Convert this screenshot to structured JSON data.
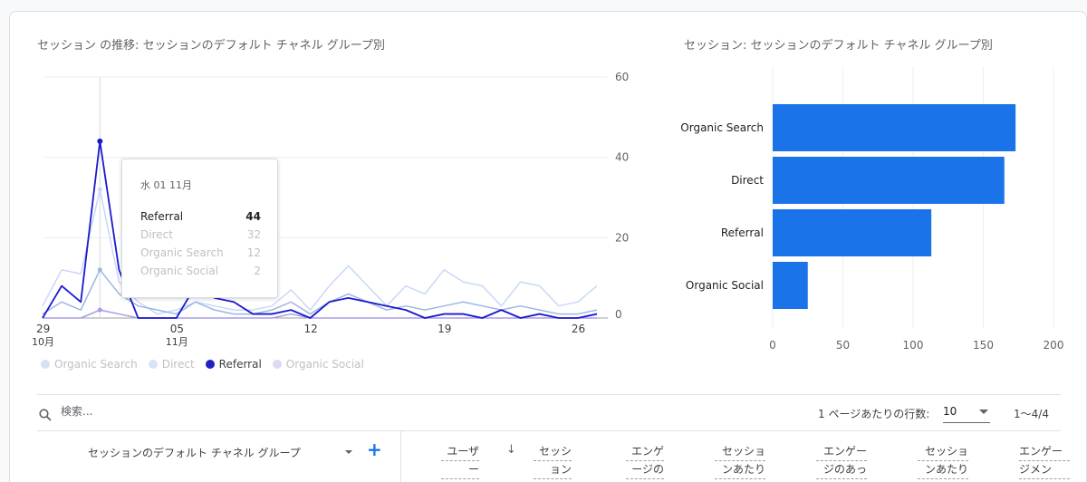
{
  "line_chart": {
    "title": "セッション の推移: セッションのデフォルト チャネル グループ別",
    "y_ticks": [
      "60",
      "40",
      "20",
      "0"
    ],
    "x_ticks": [
      {
        "day": "29",
        "month": "10月"
      },
      {
        "day": "05",
        "month": "11月"
      },
      {
        "day": "12",
        "month": ""
      },
      {
        "day": "19",
        "month": ""
      },
      {
        "day": "26",
        "month": ""
      }
    ]
  },
  "tooltip": {
    "date": "水 01 11月",
    "rows": [
      {
        "name": "Referral",
        "value": "44"
      },
      {
        "name": "Direct",
        "value": "32"
      },
      {
        "name": "Organic Search",
        "value": "12"
      },
      {
        "name": "Organic Social",
        "value": "2"
      }
    ]
  },
  "legend": [
    "Organic Search",
    "Direct",
    "Referral",
    "Organic Social"
  ],
  "bar_chart": {
    "title": "セッション: セッションのデフォルト チャネル グループ別"
  },
  "chart_data": [
    {
      "type": "line",
      "ylim": [
        0,
        60
      ],
      "x": [
        "10/29",
        "10/30",
        "10/31",
        "11/01",
        "11/02",
        "11/03",
        "11/04",
        "11/05",
        "11/06",
        "11/07",
        "11/08",
        "11/09",
        "11/10",
        "11/11",
        "11/12",
        "11/13",
        "11/14",
        "11/15",
        "11/16",
        "11/17",
        "11/18",
        "11/19",
        "11/20",
        "11/21",
        "11/22",
        "11/23",
        "11/24",
        "11/25",
        "11/26",
        "11/27"
      ],
      "series": [
        {
          "name": "Referral",
          "color": "#1a1acd",
          "values": [
            0,
            8,
            4,
            44,
            12,
            0,
            0,
            0,
            8,
            5,
            4,
            1,
            1,
            2,
            0,
            4,
            5,
            4,
            3,
            2,
            0,
            1,
            1,
            0,
            2,
            0,
            1,
            0,
            0,
            1
          ]
        },
        {
          "name": "Direct",
          "color": "#c8d8f8",
          "values": [
            3,
            12,
            11,
            32,
            9,
            4,
            1,
            2,
            4,
            3,
            2,
            2,
            3,
            7,
            2,
            8,
            13,
            8,
            3,
            8,
            6,
            12,
            9,
            8,
            3,
            9,
            8,
            3,
            4,
            8
          ]
        },
        {
          "name": "Organic Search",
          "color": "#9db6e3",
          "values": [
            1,
            4,
            2,
            12,
            6,
            3,
            2,
            1,
            4,
            2,
            1,
            1,
            2,
            4,
            1,
            4,
            6,
            4,
            2,
            3,
            2,
            3,
            4,
            3,
            2,
            3,
            2,
            1,
            1,
            2
          ]
        },
        {
          "name": "Organic Social",
          "color": "#a89be8",
          "values": [
            0,
            0,
            0,
            2,
            1,
            0,
            0,
            0,
            0,
            0,
            0,
            0,
            0,
            1,
            0,
            0,
            0,
            0,
            0,
            0,
            0,
            0,
            0,
            0,
            0,
            0,
            0,
            0,
            0,
            0
          ]
        }
      ],
      "highlight_index": 3
    },
    {
      "type": "bar",
      "orientation": "horizontal",
      "categories": [
        "Organic Search",
        "Direct",
        "Referral",
        "Organic Social"
      ],
      "values": [
        173,
        165,
        113,
        25
      ],
      "xlim": [
        0,
        200
      ],
      "x_ticks": [
        "0",
        "50",
        "100",
        "150",
        "200"
      ],
      "color": "#1a73e8"
    }
  ],
  "table": {
    "search_placeholder": "検索...",
    "rows_per_page_label": "1 ページあたりの行数:",
    "rows_per_page_value": "10",
    "pager": "1〜4/4",
    "dimension_header": "セッションのデフォルト チャネル グループ",
    "metric_headers": [
      [
        "ユーザ",
        "ー",
        ""
      ],
      [
        "セッシ",
        "ョン"
      ],
      [
        "エンゲ",
        "ージの"
      ],
      [
        "セッショ",
        "ンあたり"
      ],
      [
        "エンゲー",
        "ジのあっ"
      ],
      [
        "セッショ",
        "ンあたり"
      ],
      [
        "エンゲー",
        "ジメン"
      ]
    ]
  }
}
